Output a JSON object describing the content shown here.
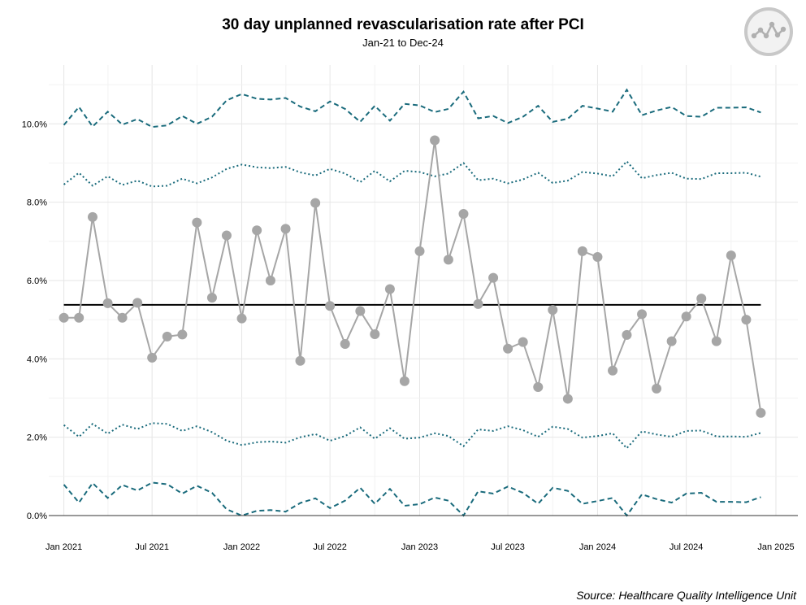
{
  "title": "30 day unplanned revascularisation rate after PCI",
  "subtitle": "Jan-21 to Dec-24",
  "source": "Source: Healthcare Quality Intelligence Unit",
  "logo_icon": "run-chart-logo-icon",
  "colors": {
    "data": "#a6a6a6",
    "mean": "#000000",
    "limits": "#1a6b7c",
    "grid": "#e6e6e6"
  },
  "chart_data": {
    "type": "line",
    "title": "30 day unplanned revascularisation rate after PCI",
    "subtitle": "Jan-21 to Dec-24",
    "xlabel": "",
    "ylabel": "",
    "x_ticks": [
      "Jan 2021",
      "Jul 2021",
      "Jan 2022",
      "Jul 2022",
      "Jan 2023",
      "Jul 2023",
      "Jan 2024",
      "Jul 2024",
      "Jan 2025"
    ],
    "y_ticks": [
      "0.0%",
      "2.0%",
      "4.0%",
      "6.0%",
      "8.0%",
      "10.0%"
    ],
    "ylim": [
      0,
      11.5
    ],
    "xlim": [
      "2020-12-01",
      "2025-02-15"
    ],
    "grid": true,
    "x": [
      "2021-01",
      "2021-02",
      "2021-03",
      "2021-04",
      "2021-05",
      "2021-06",
      "2021-07",
      "2021-08",
      "2021-09",
      "2021-10",
      "2021-11",
      "2021-12",
      "2022-01",
      "2022-02",
      "2022-03",
      "2022-04",
      "2022-05",
      "2022-06",
      "2022-07",
      "2022-08",
      "2022-09",
      "2022-10",
      "2022-11",
      "2022-12",
      "2023-01",
      "2023-02",
      "2023-03",
      "2023-04",
      "2023-05",
      "2023-06",
      "2023-07",
      "2023-08",
      "2023-09",
      "2023-10",
      "2023-11",
      "2023-12",
      "2024-01",
      "2024-02",
      "2024-03",
      "2024-04",
      "2024-05",
      "2024-06",
      "2024-07",
      "2024-08",
      "2024-09",
      "2024-10",
      "2024-11",
      "2024-12"
    ],
    "series": [
      {
        "role": "data",
        "style": "solid-markers",
        "values": [
          5.05,
          5.05,
          7.62,
          5.42,
          5.05,
          5.43,
          4.03,
          4.57,
          4.62,
          7.48,
          5.56,
          7.15,
          5.03,
          7.28,
          6.0,
          7.32,
          3.95,
          7.98,
          5.35,
          4.38,
          5.22,
          4.63,
          5.78,
          3.43,
          6.75,
          9.58,
          6.53,
          7.7,
          5.4,
          6.07,
          4.26,
          4.43,
          3.28,
          5.25,
          2.98,
          6.75,
          6.6,
          3.7,
          4.61,
          5.14,
          3.24,
          4.45,
          5.08,
          5.54,
          4.45,
          6.64,
          5.0,
          2.62
        ]
      },
      {
        "role": "mean",
        "style": "solid",
        "value": 5.38
      },
      {
        "role": "upper-3sd",
        "style": "dashed",
        "values": [
          9.97,
          10.43,
          9.93,
          10.31,
          9.98,
          10.12,
          9.92,
          9.96,
          10.2,
          10.0,
          10.18,
          10.6,
          10.76,
          10.64,
          10.62,
          10.66,
          10.44,
          10.32,
          10.57,
          10.38,
          10.05,
          10.46,
          10.08,
          10.51,
          10.47,
          10.3,
          10.38,
          10.82,
          10.14,
          10.2,
          10.02,
          10.18,
          10.46,
          10.05,
          10.13,
          10.46,
          10.39,
          10.31,
          10.87,
          10.22,
          10.34,
          10.43,
          10.2,
          10.18,
          10.41,
          10.41,
          10.42,
          10.29
        ]
      },
      {
        "role": "upper-2sd",
        "style": "dotted",
        "values": [
          8.45,
          8.75,
          8.42,
          8.66,
          8.44,
          8.55,
          8.4,
          8.42,
          8.6,
          8.48,
          8.63,
          8.85,
          8.96,
          8.89,
          8.87,
          8.9,
          8.76,
          8.68,
          8.85,
          8.73,
          8.51,
          8.8,
          8.53,
          8.8,
          8.77,
          8.66,
          8.73,
          9.0,
          8.56,
          8.6,
          8.48,
          8.58,
          8.75,
          8.49,
          8.55,
          8.77,
          8.73,
          8.66,
          9.04,
          8.61,
          8.69,
          8.75,
          8.6,
          8.59,
          8.74,
          8.74,
          8.75,
          8.65
        ]
      },
      {
        "role": "lower-2sd",
        "style": "dotted",
        "values": [
          2.31,
          2.01,
          2.34,
          2.09,
          2.32,
          2.21,
          2.36,
          2.34,
          2.16,
          2.28,
          2.13,
          1.91,
          1.8,
          1.87,
          1.89,
          1.86,
          2.0,
          2.08,
          1.91,
          2.03,
          2.25,
          1.96,
          2.23,
          1.96,
          1.99,
          2.1,
          2.03,
          1.77,
          2.2,
          2.16,
          2.28,
          2.18,
          2.01,
          2.27,
          2.21,
          1.99,
          2.03,
          2.1,
          1.72,
          2.15,
          2.07,
          2.01,
          2.16,
          2.17,
          2.02,
          2.02,
          2.01,
          2.11
        ]
      },
      {
        "role": "lower-3sd",
        "style": "dashed",
        "values": [
          0.79,
          0.33,
          0.83,
          0.45,
          0.78,
          0.64,
          0.84,
          0.8,
          0.56,
          0.76,
          0.58,
          0.16,
          0.0,
          0.12,
          0.14,
          0.1,
          0.32,
          0.44,
          0.19,
          0.38,
          0.71,
          0.3,
          0.68,
          0.25,
          0.29,
          0.46,
          0.38,
          0.0,
          0.62,
          0.56,
          0.74,
          0.58,
          0.3,
          0.71,
          0.63,
          0.3,
          0.37,
          0.45,
          0.0,
          0.54,
          0.42,
          0.33,
          0.56,
          0.58,
          0.35,
          0.35,
          0.34,
          0.47
        ]
      }
    ]
  }
}
